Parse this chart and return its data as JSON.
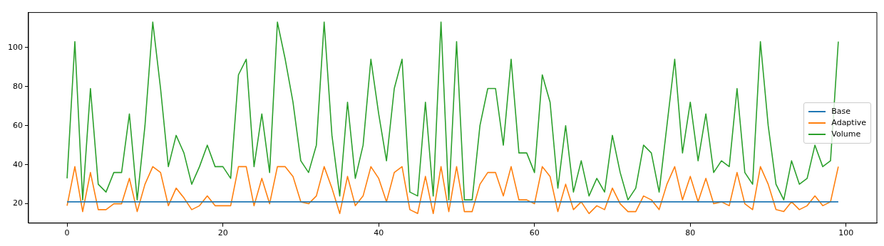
{
  "chart_data": {
    "type": "line",
    "x": [
      0,
      1,
      2,
      3,
      4,
      5,
      6,
      7,
      8,
      9,
      10,
      11,
      12,
      13,
      14,
      15,
      16,
      17,
      18,
      19,
      20,
      21,
      22,
      23,
      24,
      25,
      26,
      27,
      28,
      29,
      30,
      31,
      32,
      33,
      34,
      35,
      36,
      37,
      38,
      39,
      40,
      41,
      42,
      43,
      44,
      45,
      46,
      47,
      48,
      49,
      50,
      51,
      52,
      53,
      54,
      55,
      56,
      57,
      58,
      59,
      60,
      61,
      62,
      63,
      64,
      65,
      66,
      67,
      68,
      69,
      70,
      71,
      72,
      73,
      74,
      75,
      76,
      77,
      78,
      79,
      80,
      81,
      82,
      83,
      84,
      85,
      86,
      87,
      88,
      89,
      90,
      91,
      92,
      93,
      94,
      95,
      96,
      97,
      98,
      99
    ],
    "series": [
      {
        "name": "Base",
        "color": "#1f77b4",
        "values": [
          21,
          21,
          21,
          21,
          21,
          21,
          21,
          21,
          21,
          21,
          21,
          21,
          21,
          21,
          21,
          21,
          21,
          21,
          21,
          21,
          21,
          21,
          21,
          21,
          21,
          21,
          21,
          21,
          21,
          21,
          21,
          21,
          21,
          21,
          21,
          21,
          21,
          21,
          21,
          21,
          21,
          21,
          21,
          21,
          21,
          21,
          21,
          21,
          21,
          21,
          21,
          21,
          21,
          21,
          21,
          21,
          21,
          21,
          21,
          21,
          21,
          21,
          21,
          21,
          21,
          21,
          21,
          21,
          21,
          21,
          21,
          21,
          21,
          21,
          21,
          21,
          21,
          21,
          21,
          21,
          21,
          21,
          21,
          21,
          21,
          21,
          21,
          21,
          21,
          21,
          21,
          21,
          21,
          21,
          21,
          21,
          21,
          21,
          21,
          21
        ]
      },
      {
        "name": "Adaptive",
        "color": "#ff7f0e",
        "values": [
          19,
          39,
          16,
          36,
          17,
          17,
          20,
          20,
          33,
          16,
          30,
          39,
          36,
          19,
          28,
          23,
          17,
          19,
          24,
          19,
          19,
          19,
          39,
          39,
          19,
          33,
          20,
          39,
          39,
          34,
          21,
          20,
          24,
          39,
          28,
          15,
          34,
          19,
          24,
          39,
          33,
          21,
          36,
          39,
          17,
          15,
          34,
          15,
          39,
          16,
          39,
          16,
          16,
          30,
          36,
          36,
          24,
          39,
          22,
          22,
          20,
          39,
          34,
          16,
          30,
          17,
          21,
          15,
          19,
          17,
          28,
          20,
          16,
          16,
          24,
          22,
          17,
          30,
          39,
          22,
          34,
          21,
          33,
          20,
          21,
          19,
          36,
          20,
          17,
          39,
          30,
          17,
          16,
          21,
          17,
          19,
          24,
          19,
          21,
          39
        ]
      },
      {
        "name": "Volume",
        "color": "#2ca02c",
        "values": [
          33,
          103,
          22,
          79,
          30,
          26,
          36,
          36,
          66,
          22,
          60,
          113,
          79,
          39,
          55,
          46,
          30,
          39,
          50,
          39,
          39,
          33,
          86,
          94,
          39,
          66,
          36,
          113,
          94,
          72,
          42,
          36,
          50,
          113,
          55,
          24,
          72,
          33,
          50,
          94,
          66,
          42,
          79,
          94,
          26,
          24,
          72,
          24,
          113,
          22,
          103,
          22,
          22,
          60,
          79,
          79,
          50,
          94,
          46,
          46,
          36,
          86,
          72,
          28,
          60,
          26,
          42,
          24,
          33,
          26,
          55,
          36,
          22,
          28,
          50,
          46,
          26,
          60,
          94,
          46,
          72,
          42,
          66,
          36,
          42,
          39,
          79,
          36,
          30,
          103,
          60,
          30,
          22,
          42,
          30,
          33,
          50,
          39,
          42,
          103
        ]
      }
    ],
    "xlim": [
      -4.95,
      103.95
    ],
    "ylim": [
      10.1,
      117.9
    ],
    "xticks": [
      0,
      20,
      40,
      60,
      80,
      100
    ],
    "yticks": [
      20,
      40,
      60,
      80,
      100
    ],
    "grid": false,
    "legend": "center right"
  }
}
